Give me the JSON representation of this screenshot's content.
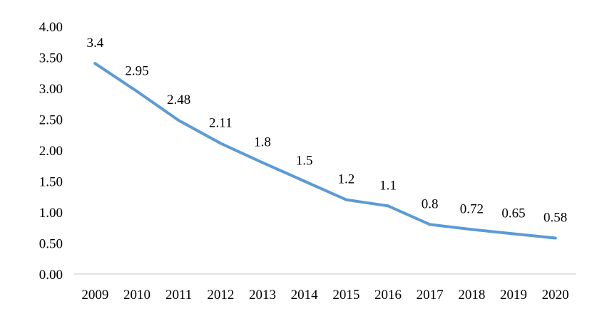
{
  "chart_data": {
    "type": "line",
    "title": "",
    "xlabel": "",
    "ylabel": "",
    "categories": [
      "2009",
      "2010",
      "2011",
      "2012",
      "2013",
      "2014",
      "2015",
      "2016",
      "2017",
      "2018",
      "2019",
      "2020"
    ],
    "series": [
      {
        "values": [
          3.4,
          2.95,
          2.48,
          2.11,
          1.8,
          1.5,
          1.2,
          1.1,
          0.8,
          0.72,
          0.65,
          0.58
        ],
        "data_labels": [
          "3.4",
          "2.95",
          "2.48",
          "2.11",
          "1.8",
          "1.5",
          "1.2",
          "1.1",
          "0.8",
          "0.72",
          "0.65",
          "0.58"
        ],
        "color": "#5b9bd5"
      }
    ],
    "ylim": [
      0,
      4
    ],
    "y_ticks": [
      "0.00",
      "0.50",
      "1.00",
      "1.50",
      "2.00",
      "2.50",
      "3.00",
      "3.50",
      "4.00"
    ],
    "grid": false,
    "legend": "none",
    "axis_color": "#d9d9d9"
  }
}
